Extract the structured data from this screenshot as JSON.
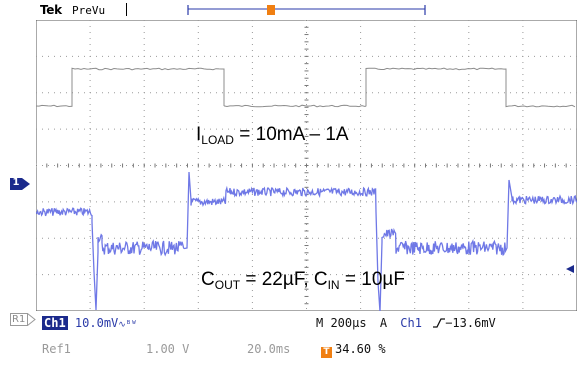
{
  "header": {
    "brand": "Tek",
    "mode": "PreVu"
  },
  "markers": {
    "trigger_icon": "T",
    "channel1_icon": "1",
    "ref_label": "R1"
  },
  "annotations": {
    "iload_main": "I",
    "iload_sub": "LOAD",
    "iload_rest": " = 10mA – 1A",
    "cout_main": "C",
    "cout_sub": "OUT",
    "cout_mid": " = 22µF, C",
    "cin_sub": "IN",
    "cin_rest": " = 10µF"
  },
  "status": {
    "ch1_label": "Ch1",
    "ch1_scale": "10.0mV",
    "bw_icon": "∿ᴮᵂ",
    "timebase": "M 200µs",
    "acq": "A",
    "trig_source": "Ch1",
    "trig_slope_icon": "rising-edge",
    "trig_level": "−13.6mV",
    "ref_label": "Ref1",
    "ref_scale": "1.00 V",
    "ref_time": "20.0ms",
    "trig_pos_icon": "T",
    "trig_pos": "34.60 %"
  },
  "colors": {
    "trace": "#6f78e6",
    "ch1_bg": "#1b2a8c",
    "trigger": "#f07f12",
    "grid": "#9a9a9a"
  }
}
